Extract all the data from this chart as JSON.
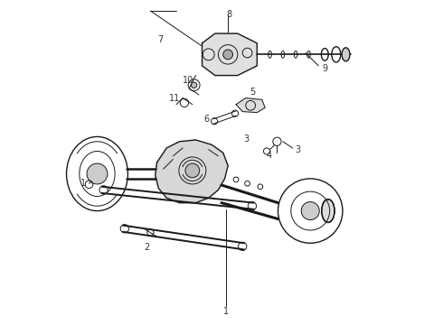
{
  "title": "",
  "background_color": "#ffffff",
  "line_color": "#1a1a1a",
  "label_color": "#333333",
  "figsize": [
    4.9,
    3.6
  ],
  "dpi": 100
}
